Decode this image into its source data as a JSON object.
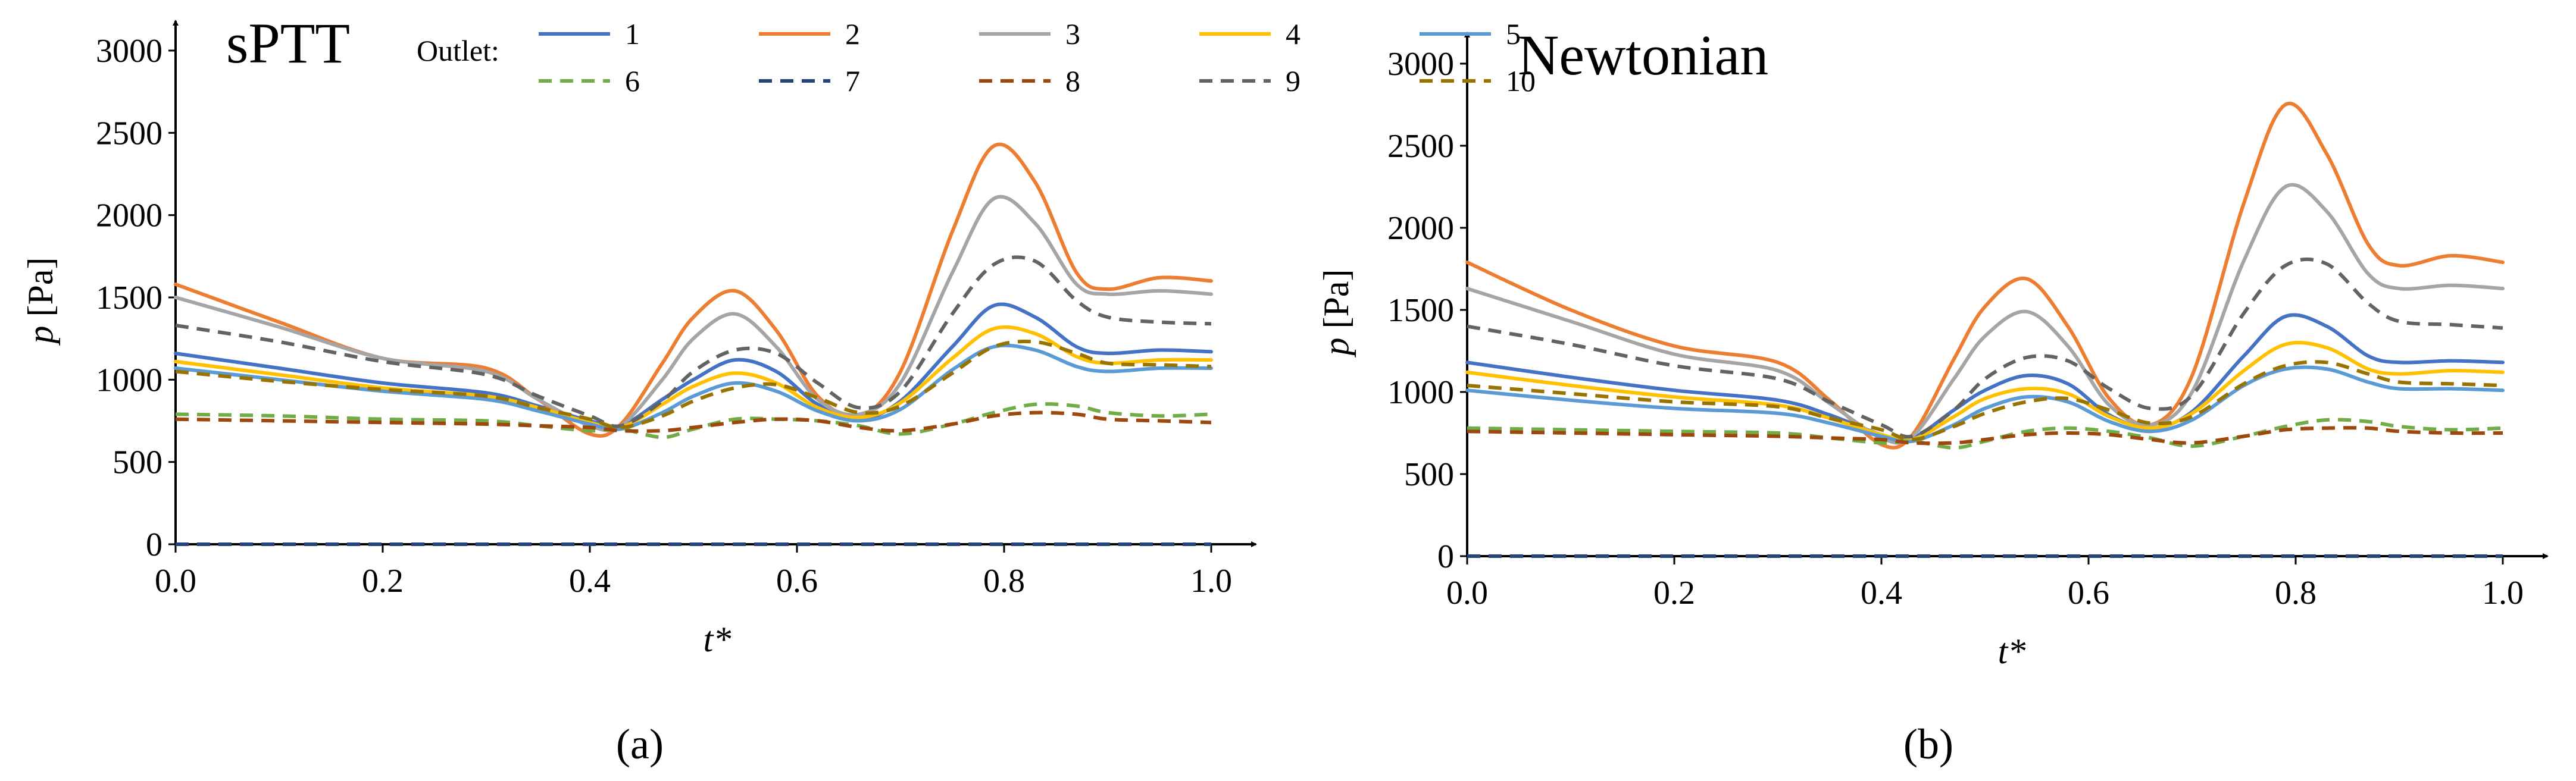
{
  "panels": [
    {
      "id": "a",
      "title": "sPTT",
      "caption": "(a)",
      "xlabel": "t*",
      "ylabel_var": "p",
      "ylabel_unit": " [Pa]"
    },
    {
      "id": "b",
      "title": "Newtonian",
      "caption": "(b)",
      "xlabel": "t*",
      "ylabel_var": "p",
      "ylabel_unit": " [Pa]"
    }
  ],
  "legend": {
    "title": "Outlet:",
    "entries": [
      {
        "label": "1",
        "color": "#4472C4",
        "dash": "solid"
      },
      {
        "label": "2",
        "color": "#ED7D31",
        "dash": "solid"
      },
      {
        "label": "3",
        "color": "#A5A5A5",
        "dash": "solid"
      },
      {
        "label": "4",
        "color": "#FFC000",
        "dash": "solid"
      },
      {
        "label": "5",
        "color": "#5B9BD5",
        "dash": "solid"
      },
      {
        "label": "6",
        "color": "#70AD47",
        "dash": "dashed"
      },
      {
        "label": "7",
        "color": "#264478",
        "dash": "dashed"
      },
      {
        "label": "8",
        "color": "#9E480E",
        "dash": "dashed"
      },
      {
        "label": "9",
        "color": "#636363",
        "dash": "dashed"
      },
      {
        "label": "10",
        "color": "#997300",
        "dash": "dashed"
      }
    ]
  },
  "chart_data": [
    {
      "type": "line",
      "title": "sPTT",
      "xlabel": "t*",
      "ylabel": "p [Pa]",
      "xlim": [
        0,
        1.0
      ],
      "ylim": [
        0,
        3000
      ],
      "xticks": [
        0.0,
        0.2,
        0.4,
        0.6,
        0.8,
        1.0
      ],
      "xtick_labels": [
        "0.0",
        "0.2",
        "0.4",
        "0.6",
        "0.8",
        "1.0"
      ],
      "yticks": [
        0,
        500,
        1000,
        1500,
        2000,
        2500,
        3000
      ],
      "ytick_labels": [
        "0",
        "500",
        "1000",
        "1500",
        "2000",
        "2500",
        "3000"
      ],
      "x": [
        0.0,
        0.1,
        0.2,
        0.3,
        0.35,
        0.4,
        0.43,
        0.47,
        0.5,
        0.54,
        0.58,
        0.62,
        0.66,
        0.7,
        0.75,
        0.79,
        0.83,
        0.87,
        0.9,
        0.95,
        1.0
      ],
      "series": [
        {
          "name": "1",
          "values": [
            1160,
            1070,
            980,
            920,
            840,
            750,
            720,
            880,
            1000,
            1120,
            1050,
            850,
            760,
            870,
            1200,
            1450,
            1380,
            1200,
            1160,
            1180,
            1170
          ]
        },
        {
          "name": "2",
          "values": [
            1580,
            1350,
            1130,
            1070,
            880,
            670,
            730,
            1100,
            1380,
            1540,
            1300,
            900,
            780,
            1050,
            1900,
            2420,
            2200,
            1650,
            1550,
            1620,
            1600
          ]
        },
        {
          "name": "3",
          "values": [
            1500,
            1320,
            1130,
            1050,
            880,
            720,
            720,
            1000,
            1250,
            1400,
            1200,
            880,
            790,
            980,
            1650,
            2100,
            1950,
            1580,
            1520,
            1540,
            1520
          ]
        },
        {
          "name": "4",
          "values": [
            1110,
            1030,
            950,
            900,
            830,
            740,
            710,
            850,
            960,
            1040,
            980,
            830,
            770,
            860,
            1130,
            1310,
            1280,
            1140,
            1100,
            1120,
            1120
          ]
        },
        {
          "name": "5",
          "values": [
            1070,
            1000,
            930,
            880,
            810,
            730,
            700,
            800,
            900,
            980,
            930,
            810,
            750,
            820,
            1060,
            1200,
            1180,
            1080,
            1050,
            1070,
            1070
          ]
        },
        {
          "name": "6",
          "values": [
            790,
            780,
            760,
            750,
            720,
            690,
            700,
            650,
            700,
            760,
            760,
            750,
            720,
            670,
            730,
            800,
            850,
            840,
            800,
            780,
            790
          ]
        },
        {
          "name": "7",
          "values": [
            0,
            0,
            0,
            0,
            0,
            0,
            0,
            0,
            0,
            0,
            0,
            0,
            0,
            0,
            0,
            0,
            0,
            0,
            0,
            0,
            0
          ]
        },
        {
          "name": "8",
          "values": [
            760,
            750,
            740,
            730,
            720,
            710,
            690,
            690,
            710,
            740,
            760,
            750,
            710,
            690,
            730,
            780,
            800,
            790,
            760,
            750,
            740
          ]
        },
        {
          "name": "9",
          "values": [
            1330,
            1230,
            1110,
            1030,
            900,
            780,
            720,
            870,
            1050,
            1180,
            1160,
            980,
            830,
            930,
            1400,
            1700,
            1720,
            1480,
            1380,
            1350,
            1340
          ]
        },
        {
          "name": "10",
          "values": [
            1050,
            990,
            940,
            900,
            830,
            760,
            710,
            780,
            870,
            950,
            970,
            890,
            800,
            840,
            1040,
            1200,
            1230,
            1160,
            1100,
            1090,
            1080
          ]
        }
      ]
    },
    {
      "type": "line",
      "title": "Newtonian",
      "xlabel": "t*",
      "ylabel": "p [Pa]",
      "xlim": [
        0,
        1.0
      ],
      "ylim": [
        0,
        3000
      ],
      "xticks": [
        0.0,
        0.2,
        0.4,
        0.6,
        0.8,
        1.0
      ],
      "xtick_labels": [
        "0.0",
        "0.2",
        "0.4",
        "0.6",
        "0.8",
        "1.0"
      ],
      "yticks": [
        0,
        500,
        1000,
        1500,
        2000,
        2500,
        3000
      ],
      "ytick_labels": [
        "0",
        "500",
        "1000",
        "1500",
        "2000",
        "2500",
        "3000"
      ],
      "x": [
        0.0,
        0.1,
        0.2,
        0.3,
        0.35,
        0.4,
        0.43,
        0.47,
        0.5,
        0.54,
        0.58,
        0.62,
        0.66,
        0.7,
        0.75,
        0.79,
        0.83,
        0.87,
        0.9,
        0.95,
        1.0
      ],
      "series": [
        {
          "name": "1",
          "values": [
            1180,
            1090,
            1010,
            950,
            860,
            740,
            720,
            890,
            1010,
            1100,
            1050,
            860,
            780,
            880,
            1220,
            1460,
            1400,
            1220,
            1180,
            1190,
            1180
          ]
        },
        {
          "name": "2",
          "values": [
            1790,
            1500,
            1280,
            1180,
            950,
            680,
            740,
            1200,
            1520,
            1690,
            1400,
            960,
            800,
            1100,
            2150,
            2750,
            2450,
            1900,
            1770,
            1830,
            1790
          ]
        },
        {
          "name": "3",
          "values": [
            1630,
            1430,
            1230,
            1130,
            930,
            720,
            730,
            1080,
            1340,
            1490,
            1280,
            920,
            800,
            1000,
            1800,
            2250,
            2100,
            1720,
            1630,
            1650,
            1630
          ]
        },
        {
          "name": "4",
          "values": [
            1120,
            1040,
            970,
            920,
            840,
            740,
            710,
            850,
            960,
            1020,
            990,
            850,
            780,
            870,
            1130,
            1290,
            1270,
            1140,
            1110,
            1130,
            1120
          ]
        },
        {
          "name": "5",
          "values": [
            1010,
            950,
            900,
            870,
            810,
            730,
            700,
            800,
            900,
            970,
            940,
            820,
            760,
            830,
            1040,
            1140,
            1140,
            1060,
            1020,
            1020,
            1010
          ]
        },
        {
          "name": "6",
          "values": [
            780,
            770,
            760,
            750,
            720,
            690,
            700,
            660,
            700,
            760,
            780,
            760,
            720,
            670,
            730,
            790,
            830,
            820,
            790,
            770,
            780
          ]
        },
        {
          "name": "7",
          "values": [
            0,
            0,
            0,
            0,
            0,
            0,
            0,
            0,
            0,
            0,
            0,
            0,
            0,
            0,
            0,
            0,
            0,
            0,
            0,
            0,
            0
          ]
        },
        {
          "name": "8",
          "values": [
            760,
            750,
            740,
            730,
            720,
            710,
            690,
            690,
            710,
            740,
            750,
            740,
            710,
            690,
            730,
            770,
            780,
            780,
            760,
            750,
            750
          ]
        },
        {
          "name": "9",
          "values": [
            1400,
            1290,
            1160,
            1080,
            940,
            800,
            730,
            890,
            1080,
            1210,
            1190,
            1020,
            900,
            980,
            1480,
            1770,
            1780,
            1540,
            1430,
            1410,
            1390
          ]
        },
        {
          "name": "10",
          "values": [
            1040,
            990,
            940,
            910,
            840,
            770,
            710,
            790,
            870,
            940,
            960,
            890,
            810,
            850,
            1050,
            1160,
            1180,
            1110,
            1060,
            1050,
            1040
          ]
        }
      ]
    }
  ]
}
